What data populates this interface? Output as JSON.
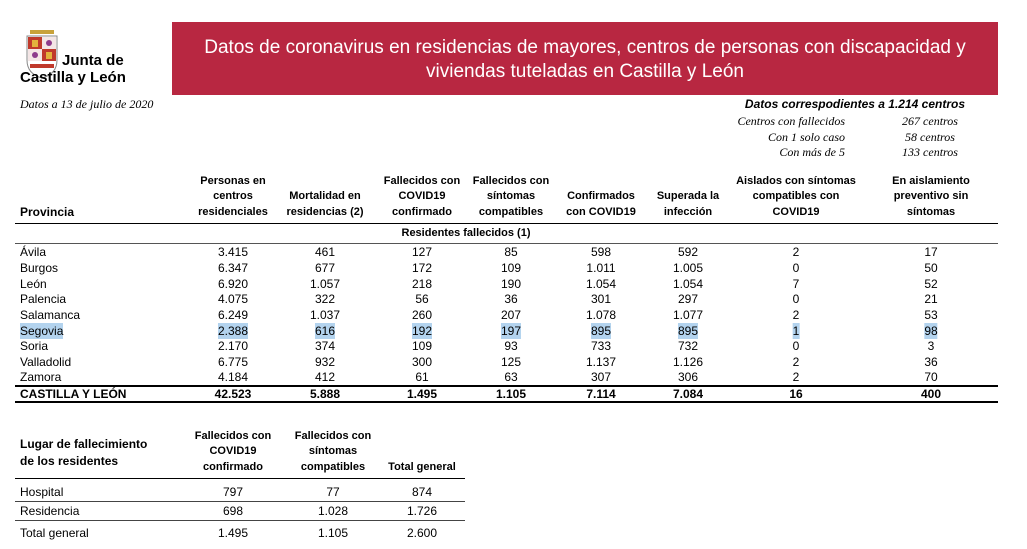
{
  "logo": {
    "line1": "Junta de",
    "line2": "Castilla y León"
  },
  "date": "Datos a 13 de julio de 2020",
  "title": [
    "Datos de coronavirus en residencias de mayores, centros de personas con discapacidad y",
    "viviendas tuteladas en Castilla y León"
  ],
  "summary": {
    "heading": "Datos correspodientes a 1.214 centros",
    "rows": [
      [
        "Centros con fallecidos",
        "267 centros"
      ],
      [
        "Con 1 solo caso",
        "58 centros"
      ],
      [
        "Con más de 5",
        "133 centros"
      ]
    ]
  },
  "table": {
    "headers": [
      [
        "Provincia"
      ],
      [
        "Personas en",
        "centros",
        "residenciales"
      ],
      [
        "Mortalidad en",
        "residencias (2)"
      ],
      [
        "Fallecidos con",
        "COVID19",
        "confirmado"
      ],
      [
        "Fallecidos con",
        "síntomas",
        "compatibles"
      ],
      [
        "Confirmados",
        "con COVID19"
      ],
      [
        "Superada la",
        "infección"
      ],
      [
        "Aislados con síntomas",
        "compatibles con",
        "COVID19"
      ],
      [
        "En aislamiento",
        "preventivo sin",
        "síntomas"
      ]
    ],
    "subheader": "Residentes fallecidos (1)",
    "highlight_row": 5,
    "rows": [
      [
        "Ávila",
        "3.415",
        "461",
        "127",
        "85",
        "598",
        "592",
        "2",
        "17"
      ],
      [
        "Burgos",
        "6.347",
        "677",
        "172",
        "109",
        "1.011",
        "1.005",
        "0",
        "50"
      ],
      [
        "León",
        "6.920",
        "1.057",
        "218",
        "190",
        "1.054",
        "1.054",
        "7",
        "52"
      ],
      [
        "Palencia",
        "4.075",
        "322",
        "56",
        "36",
        "301",
        "297",
        "0",
        "21"
      ],
      [
        "Salamanca",
        "6.249",
        "1.037",
        "260",
        "207",
        "1.078",
        "1.077",
        "2",
        "53"
      ],
      [
        "Segovia",
        "2.388",
        "616",
        "192",
        "197",
        "895",
        "895",
        "1",
        "98"
      ],
      [
        "Soria",
        "2.170",
        "374",
        "109",
        "93",
        "733",
        "732",
        "0",
        "3"
      ],
      [
        "Valladolid",
        "6.775",
        "932",
        "300",
        "125",
        "1.137",
        "1.126",
        "2",
        "36"
      ],
      [
        "Zamora",
        "4.184",
        "412",
        "61",
        "63",
        "307",
        "306",
        "2",
        "70"
      ]
    ],
    "total": [
      "CASTILLA Y LEÓN",
      "42.523",
      "5.888",
      "1.495",
      "1.105",
      "7.114",
      "7.084",
      "16",
      "400"
    ]
  },
  "table2": {
    "headers": [
      [
        "Lugar de fallecimiento",
        "de los residentes"
      ],
      [
        "Fallecidos con",
        "COVID19",
        "confirmado"
      ],
      [
        "Fallecidos con",
        "síntomas",
        "compatibles"
      ],
      [
        "Total general"
      ]
    ],
    "rows": [
      [
        "Hospital",
        "797",
        "77",
        "874"
      ],
      [
        "Residencia",
        "698",
        "1.028",
        "1.726"
      ]
    ],
    "total": [
      "Total general",
      "1.495",
      "1.105",
      "2.600"
    ]
  }
}
